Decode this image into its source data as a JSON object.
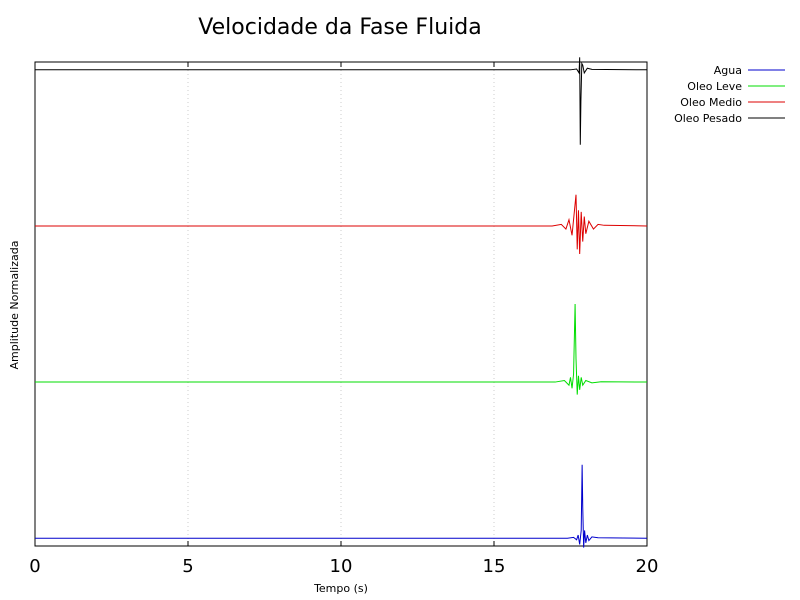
{
  "chart_data": {
    "type": "line",
    "title": "Velocidade da Fase Fluida",
    "xlabel": "Tempo (s)",
    "ylabel": "Amplitude Normalizada",
    "xlim": [
      0,
      20
    ],
    "xticks": [
      0,
      5,
      10,
      15,
      20
    ],
    "xtick_labels": [
      "0",
      "5",
      "10",
      "15",
      "20"
    ],
    "grid": "vertical-dotted",
    "legend_position": "outside-top-right",
    "trace_offsets": [
      0,
      1,
      2,
      3
    ],
    "ylim": [
      -0.05,
      3.05
    ],
    "series": [
      {
        "name": "Agua",
        "color": "#0000cc",
        "baseline": 0,
        "x": [
          0,
          17.4,
          17.6,
          17.7,
          17.75,
          17.8,
          17.85,
          17.88,
          17.9,
          17.93,
          17.96,
          18.0,
          18.05,
          18.1,
          18.2,
          18.4,
          20
        ],
        "y": [
          0,
          0,
          0.005,
          -0.01,
          0.02,
          -0.04,
          0.05,
          0.47,
          0.2,
          -0.06,
          0.05,
          -0.03,
          0.02,
          -0.015,
          0.008,
          0.003,
          0
        ]
      },
      {
        "name": "Oleo Leve",
        "color": "#00dd00",
        "baseline": 1,
        "x": [
          0,
          17.0,
          17.3,
          17.45,
          17.5,
          17.55,
          17.6,
          17.65,
          17.68,
          17.72,
          17.76,
          17.8,
          17.85,
          17.9,
          18.0,
          18.2,
          18.5,
          20
        ],
        "y": [
          0,
          0,
          0.01,
          -0.02,
          0.03,
          -0.04,
          0.05,
          0.5,
          0.15,
          -0.08,
          0.04,
          -0.05,
          0.03,
          -0.02,
          0.01,
          -0.005,
          0.002,
          0
        ]
      },
      {
        "name": "Oleo Medio",
        "color": "#dd0000",
        "baseline": 2,
        "x": [
          0,
          16.9,
          17.2,
          17.35,
          17.45,
          17.55,
          17.62,
          17.68,
          17.72,
          17.76,
          17.8,
          17.85,
          17.9,
          17.95,
          18.0,
          18.1,
          18.25,
          18.4,
          18.6,
          20
        ],
        "y": [
          0,
          0,
          0.01,
          -0.02,
          0.04,
          -0.06,
          0.08,
          0.2,
          -0.15,
          0.1,
          -0.18,
          0.09,
          -0.1,
          0.06,
          -0.05,
          0.03,
          -0.02,
          0.01,
          0.004,
          0
        ]
      },
      {
        "name": "Oleo Pesado",
        "color": "#000000",
        "baseline": 3,
        "x": [
          0,
          17.5,
          17.7,
          17.78,
          17.8,
          17.82,
          17.84,
          17.87,
          17.9,
          17.95,
          18.05,
          18.2,
          20
        ],
        "y": [
          0,
          0,
          0.005,
          -0.02,
          0.08,
          -0.48,
          -0.2,
          0.04,
          0.03,
          -0.02,
          0.01,
          0.003,
          0
        ]
      }
    ]
  }
}
